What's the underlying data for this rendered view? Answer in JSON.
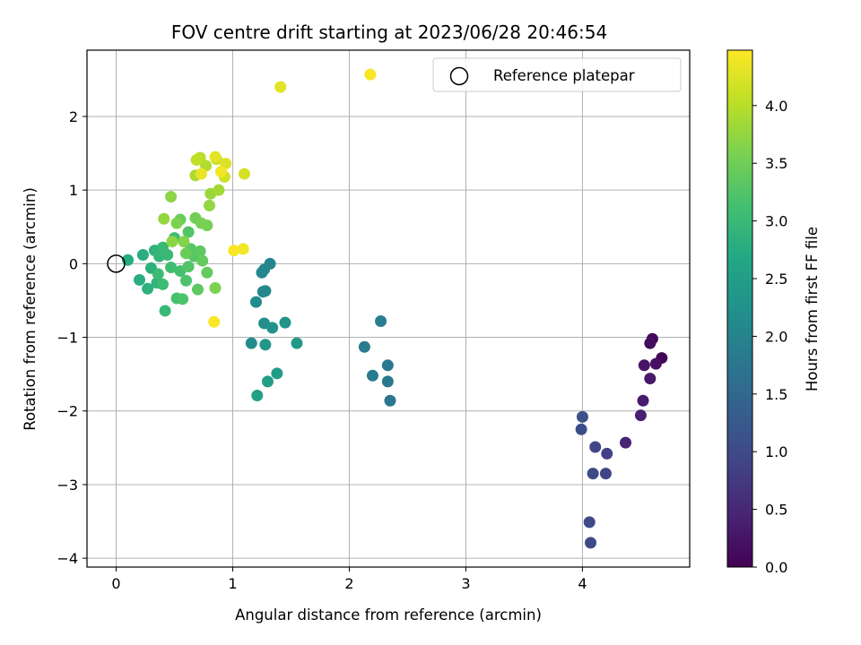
{
  "chart_data": {
    "type": "scatter",
    "title": "FOV centre drift starting at 2023/06/28 20:46:54",
    "xlabel": "Angular distance from reference (arcmin)",
    "ylabel": "Rotation from reference (arcmin)",
    "xlim": [
      -0.25,
      4.92
    ],
    "ylim": [
      -4.12,
      2.9
    ],
    "xticks": [
      0,
      1,
      2,
      3,
      4
    ],
    "yticks": [
      -4,
      -3,
      -2,
      -1,
      0,
      1,
      2
    ],
    "grid": true,
    "legend": {
      "label": "Reference platepar",
      "placement": "top-right"
    },
    "reference_point": {
      "x": 0,
      "y": 0
    },
    "colorbar": {
      "label": "Hours from first FF file",
      "colormap": "viridis",
      "range": [
        0.0,
        4.48
      ],
      "ticks": [
        "0.0",
        "0.5",
        "1.0",
        "1.5",
        "2.0",
        "2.5",
        "3.0",
        "3.5",
        "4.0"
      ]
    },
    "points": [
      {
        "x": 4.68,
        "y": -1.28,
        "t": 0.05
      },
      {
        "x": 4.6,
        "y": -1.02,
        "t": 0.1
      },
      {
        "x": 4.58,
        "y": -1.08,
        "t": 0.15
      },
      {
        "x": 4.63,
        "y": -1.36,
        "t": 0.2
      },
      {
        "x": 4.53,
        "y": -1.38,
        "t": 0.25
      },
      {
        "x": 4.58,
        "y": -1.56,
        "t": 0.3
      },
      {
        "x": 4.52,
        "y": -1.86,
        "t": 0.35
      },
      {
        "x": 4.5,
        "y": -2.06,
        "t": 0.4
      },
      {
        "x": 4.37,
        "y": -2.43,
        "t": 0.45
      },
      {
        "x": 4.21,
        "y": -2.58,
        "t": 0.85
      },
      {
        "x": 4.2,
        "y": -2.85,
        "t": 0.9
      },
      {
        "x": 4.11,
        "y": -2.49,
        "t": 0.95
      },
      {
        "x": 4.09,
        "y": -2.85,
        "t": 1.0
      },
      {
        "x": 3.99,
        "y": -2.25,
        "t": 1.05
      },
      {
        "x": 4.0,
        "y": -2.08,
        "t": 1.1
      },
      {
        "x": 4.06,
        "y": -3.51,
        "t": 1.0
      },
      {
        "x": 4.07,
        "y": -3.79,
        "t": 1.0
      },
      {
        "x": 2.35,
        "y": -1.86,
        "t": 1.75
      },
      {
        "x": 2.33,
        "y": -1.6,
        "t": 1.8
      },
      {
        "x": 2.33,
        "y": -1.38,
        "t": 1.8
      },
      {
        "x": 2.2,
        "y": -1.52,
        "t": 1.85
      },
      {
        "x": 2.13,
        "y": -1.13,
        "t": 1.85
      },
      {
        "x": 2.27,
        "y": -0.78,
        "t": 1.9
      },
      {
        "x": 1.32,
        "y": 0.0,
        "t": 2.0
      },
      {
        "x": 1.27,
        "y": -0.08,
        "t": 2.05
      },
      {
        "x": 1.25,
        "y": -0.12,
        "t": 2.05
      },
      {
        "x": 1.28,
        "y": -0.37,
        "t": 2.1
      },
      {
        "x": 1.26,
        "y": -0.38,
        "t": 2.1
      },
      {
        "x": 1.2,
        "y": -0.52,
        "t": 2.15
      },
      {
        "x": 1.16,
        "y": -1.08,
        "t": 2.15
      },
      {
        "x": 1.27,
        "y": -0.81,
        "t": 2.2
      },
      {
        "x": 1.34,
        "y": -0.87,
        "t": 2.25
      },
      {
        "x": 1.45,
        "y": -0.8,
        "t": 2.3
      },
      {
        "x": 1.28,
        "y": -1.1,
        "t": 2.35
      },
      {
        "x": 1.55,
        "y": -1.08,
        "t": 2.4
      },
      {
        "x": 1.38,
        "y": -1.49,
        "t": 2.45
      },
      {
        "x": 1.3,
        "y": -1.6,
        "t": 2.5
      },
      {
        "x": 1.21,
        "y": -1.79,
        "t": 2.55
      },
      {
        "x": 0.1,
        "y": 0.05,
        "t": 2.75
      },
      {
        "x": 0.2,
        "y": -0.22,
        "t": 2.8
      },
      {
        "x": 0.23,
        "y": 0.12,
        "t": 2.8
      },
      {
        "x": 0.27,
        "y": -0.34,
        "t": 2.85
      },
      {
        "x": 0.3,
        "y": -0.06,
        "t": 2.85
      },
      {
        "x": 0.33,
        "y": 0.18,
        "t": 2.9
      },
      {
        "x": 0.35,
        "y": -0.26,
        "t": 2.9
      },
      {
        "x": 0.37,
        "y": 0.1,
        "t": 2.95
      },
      {
        "x": 0.4,
        "y": 0.22,
        "t": 3.0
      },
      {
        "x": 0.42,
        "y": -0.64,
        "t": 3.0
      },
      {
        "x": 0.44,
        "y": 0.12,
        "t": 3.0
      },
      {
        "x": 0.36,
        "y": -0.14,
        "t": 3.05
      },
      {
        "x": 0.4,
        "y": -0.28,
        "t": 3.05
      },
      {
        "x": 0.47,
        "y": -0.05,
        "t": 3.1
      },
      {
        "x": 0.5,
        "y": 0.35,
        "t": 3.1
      },
      {
        "x": 0.52,
        "y": -0.47,
        "t": 3.15
      },
      {
        "x": 0.55,
        "y": -0.1,
        "t": 3.15
      },
      {
        "x": 0.57,
        "y": -0.48,
        "t": 3.2
      },
      {
        "x": 0.6,
        "y": -0.23,
        "t": 3.2
      },
      {
        "x": 0.62,
        "y": 0.43,
        "t": 3.25
      },
      {
        "x": 0.62,
        "y": -0.04,
        "t": 3.25
      },
      {
        "x": 0.64,
        "y": 0.2,
        "t": 3.3
      },
      {
        "x": 0.67,
        "y": 0.1,
        "t": 3.3
      },
      {
        "x": 0.7,
        "y": -0.35,
        "t": 3.35
      },
      {
        "x": 0.72,
        "y": 0.17,
        "t": 3.35
      },
      {
        "x": 0.74,
        "y": 0.04,
        "t": 3.4
      },
      {
        "x": 0.78,
        "y": -0.12,
        "t": 3.4
      },
      {
        "x": 0.55,
        "y": 0.6,
        "t": 3.45
      },
      {
        "x": 0.6,
        "y": 0.14,
        "t": 3.45
      },
      {
        "x": 0.68,
        "y": 0.62,
        "t": 3.5
      },
      {
        "x": 0.73,
        "y": 0.55,
        "t": 3.55
      },
      {
        "x": 0.78,
        "y": 0.52,
        "t": 3.55
      },
      {
        "x": 0.85,
        "y": -0.33,
        "t": 3.6
      },
      {
        "x": 0.52,
        "y": 0.55,
        "t": 3.6
      },
      {
        "x": 0.58,
        "y": 0.3,
        "t": 3.65
      },
      {
        "x": 0.48,
        "y": 0.3,
        "t": 3.7
      },
      {
        "x": 0.47,
        "y": 0.91,
        "t": 3.7
      },
      {
        "x": 0.41,
        "y": 0.61,
        "t": 3.75
      },
      {
        "x": 0.8,
        "y": 0.79,
        "t": 3.75
      },
      {
        "x": 0.81,
        "y": 0.95,
        "t": 3.8
      },
      {
        "x": 0.88,
        "y": 1.0,
        "t": 3.85
      },
      {
        "x": 0.68,
        "y": 1.2,
        "t": 3.9
      },
      {
        "x": 0.77,
        "y": 1.33,
        "t": 3.95
      },
      {
        "x": 0.72,
        "y": 1.44,
        "t": 4.0
      },
      {
        "x": 0.69,
        "y": 1.41,
        "t": 4.05
      },
      {
        "x": 0.86,
        "y": 1.42,
        "t": 4.1
      },
      {
        "x": 0.93,
        "y": 1.18,
        "t": 4.15
      },
      {
        "x": 1.1,
        "y": 1.22,
        "t": 4.2
      },
      {
        "x": 0.94,
        "y": 1.36,
        "t": 4.25
      },
      {
        "x": 0.85,
        "y": 1.45,
        "t": 4.3
      },
      {
        "x": 0.73,
        "y": 1.22,
        "t": 4.35
      },
      {
        "x": 0.9,
        "y": 1.25,
        "t": 4.4
      },
      {
        "x": 1.09,
        "y": 0.2,
        "t": 4.4
      },
      {
        "x": 1.01,
        "y": 0.18,
        "t": 4.45
      },
      {
        "x": 0.84,
        "y": -0.79,
        "t": 4.45
      },
      {
        "x": 1.41,
        "y": 2.4,
        "t": 4.3
      },
      {
        "x": 2.18,
        "y": 2.57,
        "t": 4.45
      }
    ]
  }
}
